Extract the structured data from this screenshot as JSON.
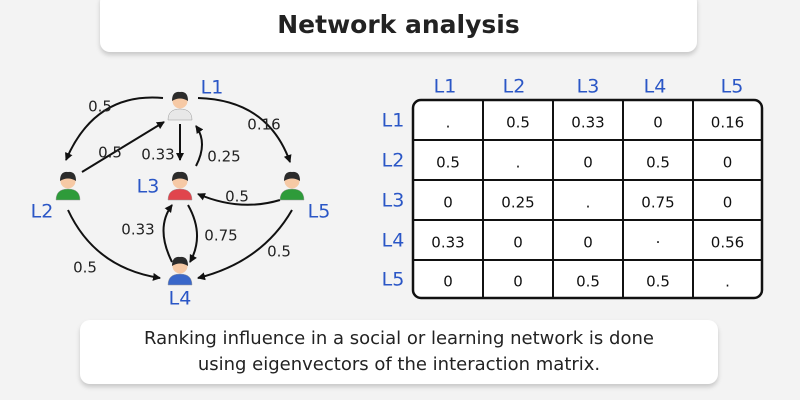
{
  "title": "Network analysis",
  "graph": {
    "nodes": [
      "L1",
      "L2",
      "L3",
      "L4",
      "L5"
    ],
    "edges": [
      "0.5",
      "0.5",
      "0.33",
      "0.25",
      "0.16",
      "0.5",
      "0.33",
      "0.75",
      "0.5",
      "0.5"
    ]
  },
  "matrix": {
    "columns": [
      "L1",
      "L2",
      "L3",
      "L4",
      "L5"
    ],
    "rows": [
      {
        "label": "L1",
        "cells": [
          ".",
          "0.5",
          "0.33",
          "0",
          "0.16"
        ]
      },
      {
        "label": "L2",
        "cells": [
          "0.5",
          ".",
          "0",
          "0.5",
          "0"
        ]
      },
      {
        "label": "L3",
        "cells": [
          "0",
          "0.25",
          ".",
          "0.75",
          "0"
        ]
      },
      {
        "label": "L4",
        "cells": [
          "0.33",
          "0",
          "0",
          "·",
          "0.56"
        ]
      },
      {
        "label": "L5",
        "cells": [
          "0",
          "0",
          "0.5",
          "0.5",
          "."
        ]
      }
    ]
  },
  "caption": {
    "lines": [
      "Ranking influence in a social or learning network is done",
      "using eigenvectors of the interaction matrix."
    ]
  }
}
